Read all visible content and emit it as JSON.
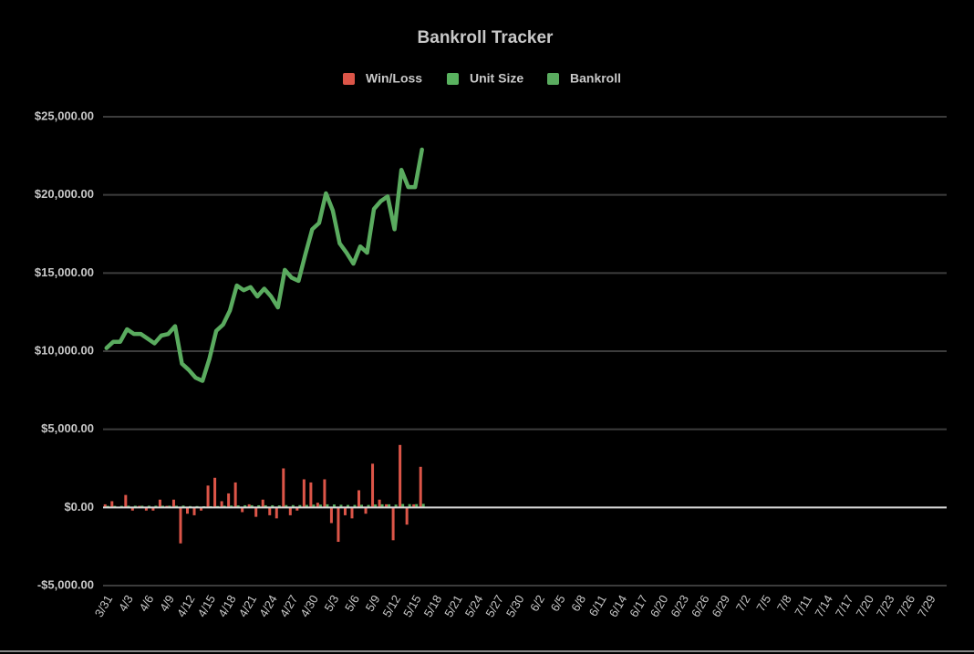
{
  "chart_data": {
    "type": "combo",
    "title": "Bankroll Tracker",
    "legend": "top",
    "grid": true,
    "categories": [
      "3/31",
      null,
      null,
      "4/3",
      null,
      null,
      "4/6",
      null,
      null,
      "4/9",
      null,
      null,
      "4/12",
      null,
      null,
      "4/15",
      null,
      null,
      "4/18",
      null,
      null,
      "4/21",
      null,
      null,
      "4/24",
      null,
      null,
      "4/27",
      null,
      null,
      "4/30",
      null,
      null,
      "5/3",
      null,
      null,
      "5/6",
      null,
      null,
      "5/9",
      null,
      null,
      "5/12",
      null,
      null,
      "5/15",
      null,
      null,
      "5/18",
      null,
      null,
      "5/21",
      null,
      null,
      "5/24",
      null,
      null,
      "5/27",
      null,
      null,
      "5/30",
      null,
      null,
      "6/2",
      null,
      null,
      "6/5",
      null,
      null,
      "6/8",
      null,
      null,
      "6/11",
      null,
      null,
      "6/14",
      null,
      null,
      "6/17",
      null,
      null,
      "6/20",
      null,
      null,
      "6/23",
      null,
      null,
      "6/26",
      null,
      null,
      "6/29",
      null,
      null,
      "7/2",
      null,
      null,
      "7/5",
      null,
      null,
      "7/8",
      null,
      null,
      "7/11",
      null,
      null,
      "7/14",
      null,
      null,
      "7/17",
      null,
      null,
      "7/20",
      null,
      null,
      "7/23",
      null,
      null,
      "7/26",
      null,
      null,
      "7/29",
      null,
      null
    ],
    "ylim": [
      -5000,
      25000
    ],
    "yticks": [
      {
        "value": -5000,
        "label": "-$5,000.00"
      },
      {
        "value": 0,
        "label": "$0.00"
      },
      {
        "value": 5000,
        "label": "$5,000.00"
      },
      {
        "value": 10000,
        "label": "$10,000.00"
      },
      {
        "value": 15000,
        "label": "$15,000.00"
      },
      {
        "value": 20000,
        "label": "$20,000.00"
      },
      {
        "value": 25000,
        "label": "$25,000.00"
      }
    ],
    "series": [
      {
        "name": "Win/Loss",
        "kind": "bar",
        "color": "#dc5548",
        "values": [
          200,
          400,
          0,
          800,
          -200,
          100,
          -200,
          -200,
          500,
          100,
          500,
          -2300,
          -400,
          -500,
          -200,
          1400,
          1900,
          400,
          900,
          1600,
          -300,
          200,
          -600,
          500,
          -500,
          -700,
          2500,
          -500,
          -200,
          1800,
          1600,
          300,
          1800,
          -1000,
          -2200,
          -500,
          -700,
          1100,
          -400,
          2800,
          500,
          200,
          -2100,
          4000,
          -1100,
          200,
          2600,
          null,
          null,
          null,
          null,
          null,
          null,
          null,
          null,
          null,
          null,
          null,
          null,
          null,
          null,
          null,
          null,
          null,
          null,
          null,
          null,
          null,
          null,
          null,
          null,
          null,
          null,
          null,
          null,
          null,
          null,
          null,
          null,
          null,
          null,
          null,
          null,
          null,
          null,
          null,
          null,
          null,
          null,
          null,
          null,
          null,
          null,
          null,
          null,
          null,
          null,
          null,
          null,
          null,
          null,
          null,
          null,
          null,
          null,
          null,
          null,
          null,
          null,
          null,
          null,
          null,
          null,
          null,
          null,
          null,
          null,
          null,
          null,
          null,
          null,
          null,
          null
        ]
      },
      {
        "name": "Unit Size",
        "kind": "bar",
        "color": "#59b25f",
        "values": [
          100,
          100,
          100,
          110,
          110,
          110,
          110,
          110,
          110,
          110,
          110,
          120,
          90,
          90,
          80,
          80,
          90,
          110,
          120,
          130,
          140,
          140,
          140,
          140,
          140,
          130,
          150,
          150,
          150,
          160,
          180,
          180,
          200,
          190,
          170,
          160,
          160,
          170,
          160,
          190,
          200,
          200,
          180,
          220,
          210,
          210,
          230,
          null,
          null,
          null,
          null,
          null,
          null,
          null,
          null,
          null,
          null,
          null,
          null,
          null,
          null,
          null,
          null,
          null,
          null,
          null,
          null,
          null,
          null,
          null,
          null,
          null,
          null,
          null,
          null,
          null,
          null,
          null,
          null,
          null,
          null,
          null,
          null,
          null,
          null,
          null,
          null,
          null,
          null,
          null,
          null,
          null,
          null,
          null,
          null,
          null,
          null,
          null,
          null,
          null,
          null,
          null,
          null,
          null,
          null,
          null,
          null,
          null,
          null,
          null,
          null,
          null,
          null,
          null,
          null,
          null,
          null,
          null,
          null,
          null,
          null,
          null,
          null
        ]
      },
      {
        "name": "Bankroll",
        "kind": "line",
        "color": "#5aab5f",
        "values": [
          10200,
          10600,
          10600,
          11400,
          11100,
          11100,
          10800,
          10500,
          11000,
          11100,
          11600,
          9200,
          8800,
          8300,
          8100,
          9500,
          11300,
          11700,
          12600,
          14200,
          13900,
          14100,
          13500,
          14000,
          13500,
          12800,
          15200,
          14700,
          14500,
          16200,
          17800,
          18200,
          20100,
          19000,
          16900,
          16300,
          15600,
          16700,
          16300,
          19100,
          19600,
          19900,
          17800,
          21600,
          20500,
          20500,
          22900,
          null,
          null,
          null,
          null,
          null,
          null,
          null,
          null,
          null,
          null,
          null,
          null,
          null,
          null,
          null,
          null,
          null,
          null,
          null,
          null,
          null,
          null,
          null,
          null,
          null,
          null,
          null,
          null,
          null,
          null,
          null,
          null,
          null,
          null,
          null,
          null,
          null,
          null,
          null,
          null,
          null,
          null,
          null,
          null,
          null,
          null,
          null,
          null,
          null,
          null,
          null,
          null,
          null,
          null,
          null,
          null,
          null,
          null,
          null,
          null,
          null,
          null,
          null,
          null,
          null,
          null,
          null,
          null,
          null,
          null,
          null,
          null,
          null,
          null,
          null,
          null
        ]
      }
    ]
  }
}
